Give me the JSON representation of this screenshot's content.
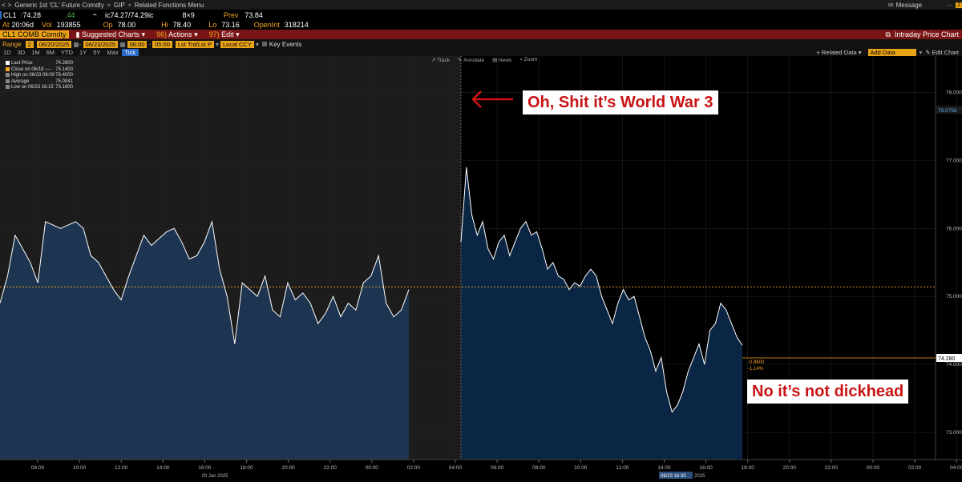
{
  "topbar": {
    "nav_back": "<",
    "nav_fwd": ">",
    "security": "Generic 1st 'CL' Future Comdty",
    "gip": "GIP",
    "related_menu": "Related Functions Menu",
    "message": "Message",
    "bell_badge": "2"
  },
  "quote": {
    "ticker": "CL1",
    "last": "74.28",
    "change": ".44",
    "bidask": "ic74.27/74.29ic",
    "size": "8×9",
    "prev_label": "Prev",
    "prev": "73.84",
    "at_label": "At",
    "time": "20:06d",
    "vol_label": "Vol",
    "vol": "193855",
    "op_label": "Op",
    "open": "78.00",
    "hi_label": "Hi",
    "high": "78.40",
    "lo_label": "Lo",
    "low": "73.16",
    "oi_label": "OpenInt",
    "oi": "318214"
  },
  "toolbar": {
    "security_field": "CL1 COMB Comdty",
    "suggested": "Suggested Charts",
    "actions": "Actions",
    "edit": "Edit",
    "title": "Intraday Price Chart"
  },
  "controls": {
    "range_label": "Range",
    "range_num": "2",
    "date_from": "06/20/2025",
    "date_to": "06/23/2025",
    "time_from": "06:00",
    "time_to": "05:00",
    "price_field": "Lst Trd/Lst P",
    "currency": "Local CCY",
    "key_events": "Key Events"
  },
  "periods": [
    "1D",
    "3D",
    "1M",
    "6M",
    "YTD",
    "1Y",
    "5Y",
    "Max",
    "Tick"
  ],
  "right_controls": {
    "related": "Related Data",
    "add": "Add Data",
    "edit_chart": "Edit Chart"
  },
  "chart_tools": {
    "track": "Track",
    "annotate": "Annotate",
    "news": "News",
    "zoom": "Zoom"
  },
  "legend": [
    {
      "label": "Last Price",
      "value": "74.2800",
      "color": "#ffffff"
    },
    {
      "label": "Close on 06/18 ----",
      "value": "75.1400",
      "color": "#f5a623"
    },
    {
      "label": "High on 06/23 06:00",
      "value": "78.4000",
      "color": "#888888"
    },
    {
      "label": "Average",
      "value": "75.0041",
      "color": "#888888"
    },
    {
      "label": "Low on 06/23 16:15",
      "value": "73.1600",
      "color": "#888888"
    }
  ],
  "annotations": {
    "top": "Oh, Shit it’s World War 3",
    "bottom": "No it’s not dickhead"
  },
  "right_axis": {
    "last_tag": "74.280",
    "change": "-0.8600",
    "change_pct": "-1.14%"
  },
  "crosshair_label": "06/23 16:30",
  "date_label_1": "20 Jun 2025",
  "date_label_2": "2025",
  "colors": {
    "bg": "#000000",
    "area_fill": "#142a44",
    "line": "#ffffff",
    "close_line": "#f5a623",
    "toolbar_red": "#7a1515"
  },
  "chart_data": {
    "type": "area",
    "title": "Intraday Price Chart",
    "ylim": [
      72.6,
      78.3
    ],
    "yticks": [
      "73.000",
      "74.000",
      "75.000",
      "76.000",
      "77.000",
      "78.000"
    ],
    "top_tick": "78.0758",
    "xticks": [
      "08:00",
      "10:00",
      "12:00",
      "14:00",
      "16:00",
      "18:00",
      "20:00",
      "22:00",
      "00:00",
      "02:00",
      "04:00",
      "06:00",
      "08:00",
      "10:00",
      "12:00",
      "14:00",
      "16:00",
      "18:00",
      "20:00",
      "22:00",
      "00:00",
      "02:00",
      "04:00"
    ],
    "reference_close": 75.14,
    "series": [
      {
        "segment": "06/20",
        "values": [
          74.9,
          75.3,
          75.9,
          75.7,
          75.5,
          75.2,
          76.1,
          76.05,
          76.0,
          76.05,
          76.1,
          76.0,
          75.6,
          75.5,
          75.3,
          75.1,
          74.95,
          75.3,
          75.6,
          75.9,
          75.75,
          75.85,
          75.95,
          76.0,
          75.8,
          75.55,
          75.6,
          75.8,
          76.1,
          75.4,
          75.0,
          74.3,
          75.2,
          75.1,
          75.0,
          75.3,
          74.8,
          74.7,
          75.2,
          74.95,
          75.05,
          74.9,
          74.6,
          74.75,
          75.0,
          74.7,
          74.9,
          74.8,
          75.2,
          75.3,
          75.6,
          74.9,
          74.7,
          74.8,
          75.1
        ]
      },
      {
        "segment": "06/23",
        "values": [
          75.8,
          76.9,
          76.2,
          75.9,
          76.1,
          75.7,
          75.55,
          75.8,
          75.9,
          75.6,
          75.8,
          76.0,
          76.1,
          75.9,
          75.95,
          75.7,
          75.4,
          75.5,
          75.3,
          75.25,
          75.1,
          75.2,
          75.15,
          75.3,
          75.4,
          75.3,
          75.0,
          74.8,
          74.6,
          74.9,
          75.1,
          74.95,
          75.0,
          74.7,
          74.4,
          74.2,
          73.9,
          74.1,
          73.6,
          73.3,
          73.4,
          73.6,
          73.9,
          74.1,
          74.3,
          74.0,
          74.5,
          74.6,
          74.9,
          74.8,
          74.6,
          74.4,
          74.28
        ]
      }
    ]
  }
}
